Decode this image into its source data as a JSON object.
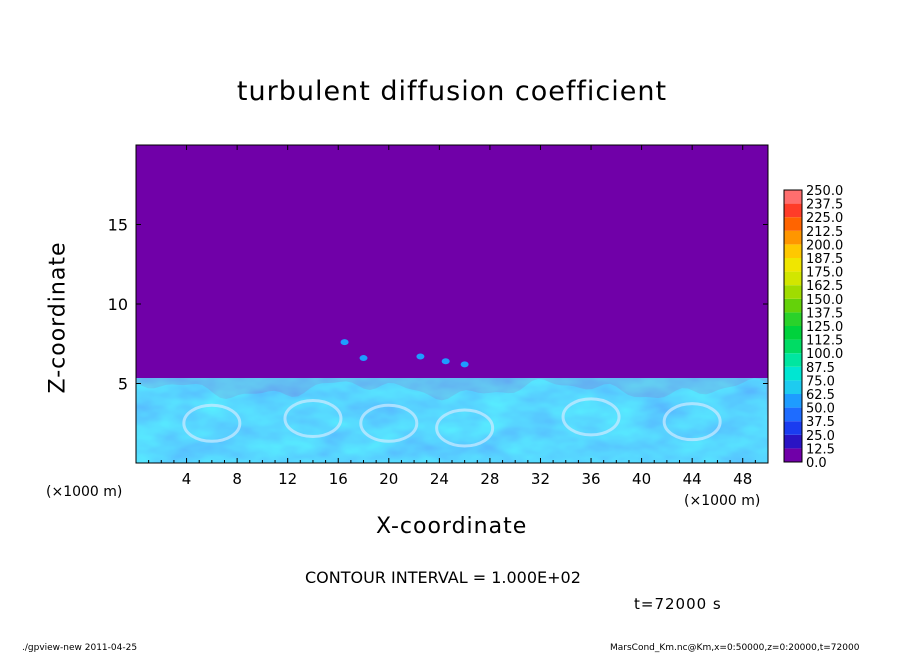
{
  "chart_data": {
    "type": "heatmap",
    "title": "turbulent diffusion coefficient",
    "xlabel": "X-coordinate",
    "ylabel": "Z-coordinate",
    "x_unit_label_left": "(×1000 m)",
    "x_unit_label_right": "(×1000 m)",
    "xlim": [
      0,
      50
    ],
    "ylim": [
      0,
      20
    ],
    "x_ticks": [
      4,
      8,
      12,
      16,
      20,
      24,
      28,
      32,
      36,
      40,
      44,
      48
    ],
    "x_tick_labels": [
      "4",
      "8",
      "12",
      "16",
      "20",
      "24",
      "28",
      "32",
      "36",
      "40",
      "44",
      "48"
    ],
    "y_ticks": [
      5,
      10,
      15
    ],
    "y_tick_labels": [
      "5",
      "10",
      "15"
    ],
    "mixed_layer_top": 5,
    "colorbar": {
      "levels": [
        "0.0",
        "12.5",
        "25.0",
        "37.5",
        "50.0",
        "62.5",
        "75.0",
        "87.5",
        "100.0",
        "112.5",
        "125.0",
        "137.5",
        "150.0",
        "162.5",
        "175.0",
        "187.5",
        "200.0",
        "212.5",
        "225.0",
        "237.5",
        "250.0"
      ],
      "colors": [
        "#7000a8",
        "#2a14c4",
        "#1a3cf0",
        "#1e6cff",
        "#1e9cff",
        "#1ecbf0",
        "#00e6d2",
        "#00e6a0",
        "#00dc64",
        "#00d23c",
        "#2ad22a",
        "#64d20a",
        "#a0dc00",
        "#d2e600",
        "#f0e600",
        "#ffc800",
        "#ff9600",
        "#ff6400",
        "#ff3c28",
        "#ff6e6e"
      ]
    },
    "contour_interval": "CONTOUR INTERVAL = 1.000E+02",
    "time": "t=72000 s"
  },
  "footer": {
    "left": "./gpview-new   2011-04-25",
    "right": "MarsCond_Km.nc@Km,x=0:50000,z=0:20000,t=72000"
  }
}
